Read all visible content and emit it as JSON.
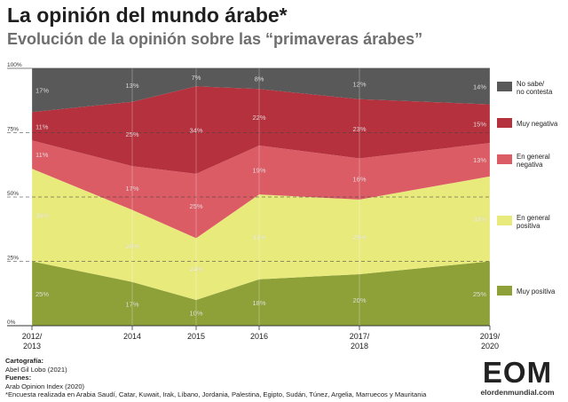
{
  "header": {
    "title": "La opinión del mundo árabe*",
    "subtitle": "Evolución de la opinión sobre las “primaveras árabes”"
  },
  "chart_data": {
    "type": "area",
    "stacked": true,
    "x": [
      "2012/2013",
      "2014",
      "2015",
      "2016",
      "2017/2018",
      "2019/2020"
    ],
    "x_labels": [
      [
        "2012/",
        "2013"
      ],
      [
        "2014"
      ],
      [
        "2015"
      ],
      [
        "2016"
      ],
      [
        "2017/",
        "2018"
      ],
      [
        "2019/",
        "2020"
      ]
    ],
    "y_ticks": [
      "0%",
      "25%",
      "50%",
      "75%",
      "100%"
    ],
    "ylim": [
      0,
      100
    ],
    "gridlines": [
      25,
      50,
      75
    ],
    "legend_position": "right",
    "series": [
      {
        "name": "Muy positiva",
        "color": "#8ea139",
        "values": [
          25,
          17,
          10,
          18,
          20,
          25
        ],
        "labels": [
          "25%",
          "17%",
          "10%",
          "18%",
          "20%",
          "25%"
        ]
      },
      {
        "name": "En general positiva",
        "color": "#e9ea7c",
        "values": [
          36,
          28,
          24,
          33,
          29,
          33
        ],
        "labels": [
          "36%",
          "28%",
          "24%",
          "33%",
          "29%",
          "33%"
        ]
      },
      {
        "name": "En general negativa",
        "color": "#dc5c66",
        "values": [
          11,
          17,
          25,
          19,
          16,
          13
        ],
        "labels": [
          "11%",
          "17%",
          "25%",
          "19%",
          "16%",
          "13%"
        ]
      },
      {
        "name": "Muy negativa",
        "color": "#b5313d",
        "values": [
          11,
          25,
          34,
          22,
          23,
          15
        ],
        "labels": [
          "11%",
          "25%",
          "34%",
          "22%",
          "23%",
          "15%"
        ]
      },
      {
        "name": "No sabe/ no contesta",
        "color": "#595959",
        "values": [
          17,
          13,
          7,
          8,
          12,
          14
        ],
        "labels": [
          "17%",
          "13%",
          "7%",
          "8%",
          "12%",
          "14%"
        ]
      }
    ],
    "legend": [
      {
        "lines": [
          "No sabe/",
          "no contesta"
        ],
        "color": "#595959"
      },
      {
        "lines": [
          "Muy negativa"
        ],
        "color": "#b5313d"
      },
      {
        "lines": [
          "En general",
          "negativa"
        ],
        "color": "#dc5c66"
      },
      {
        "lines": [
          "En general",
          "positiva"
        ],
        "color": "#e9ea7c"
      },
      {
        "lines": [
          "Muy positiva"
        ],
        "color": "#8ea139"
      }
    ]
  },
  "footer": {
    "cartografia_label": "Cartografía:",
    "cartografia_value": "Abel Gil Lobo (2021)",
    "fuentes_label": "Fuenes:",
    "fuentes_value": "Arab Opinion Index (2020)",
    "note": "*Encuesta realizada en Arabia Saudí, Catar, Kuwait, Irak, Líbano, Jordania, Palestina, Egipto, Sudán, Túnez, Argelia, Marruecos y Mauritania"
  },
  "logo": {
    "mark": "EOM",
    "url": "elordenmundial.com"
  }
}
